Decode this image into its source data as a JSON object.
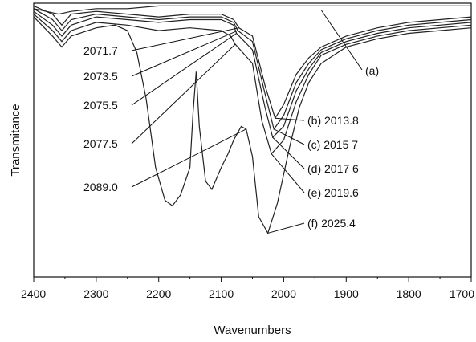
{
  "chart_data": {
    "type": "line",
    "xlabel": "Wavenumbers",
    "ylabel": "Transmitance",
    "xlim": [
      2400,
      1700
    ],
    "x_reversed": true,
    "x_ticks": [
      2400,
      2300,
      2200,
      2100,
      2000,
      1900,
      1800,
      1700
    ],
    "x_tick_labels": [
      "2400",
      "2300",
      "2200",
      "2100",
      "2000",
      "1900",
      "1800",
      "1700"
    ],
    "ylim": [
      0,
      100
    ],
    "grid": false,
    "series": [
      {
        "id": "a",
        "label": "(a)",
        "min_position": "",
        "points": [
          [
            2400,
            98
          ],
          [
            2380,
            97
          ],
          [
            2360,
            96
          ],
          [
            2340,
            97
          ],
          [
            2300,
            98
          ],
          [
            2250,
            98
          ],
          [
            2200,
            99
          ],
          [
            2150,
            99
          ],
          [
            2100,
            99
          ],
          [
            2050,
            99
          ],
          [
            2000,
            99
          ],
          [
            1900,
            99
          ],
          [
            1800,
            99
          ],
          [
            1700,
            99
          ]
        ]
      },
      {
        "id": "b",
        "label": "(b)",
        "min_position": "2013.8",
        "peak_label": "2071.7",
        "points": [
          [
            2400,
            99
          ],
          [
            2370,
            96
          ],
          [
            2355,
            92
          ],
          [
            2340,
            96
          ],
          [
            2300,
            97
          ],
          [
            2250,
            96
          ],
          [
            2200,
            95
          ],
          [
            2150,
            96
          ],
          [
            2100,
            96
          ],
          [
            2080,
            94
          ],
          [
            2071.7,
            91
          ],
          [
            2050,
            88
          ],
          [
            2030,
            70
          ],
          [
            2013.8,
            58
          ],
          [
            2000,
            63
          ],
          [
            1980,
            74
          ],
          [
            1960,
            80
          ],
          [
            1940,
            84
          ],
          [
            1900,
            88
          ],
          [
            1850,
            91
          ],
          [
            1800,
            93
          ],
          [
            1750,
            94
          ],
          [
            1700,
            95
          ]
        ]
      },
      {
        "id": "c",
        "label": "(c)",
        "min_position": "2015 7",
        "peak_label": "2073.5",
        "points": [
          [
            2400,
            98
          ],
          [
            2370,
            94
          ],
          [
            2355,
            90
          ],
          [
            2340,
            94
          ],
          [
            2300,
            96
          ],
          [
            2250,
            95
          ],
          [
            2200,
            94
          ],
          [
            2150,
            95
          ],
          [
            2100,
            95
          ],
          [
            2080,
            93
          ],
          [
            2073.5,
            90
          ],
          [
            2050,
            86
          ],
          [
            2030,
            67
          ],
          [
            2015.7,
            54
          ],
          [
            2000,
            59
          ],
          [
            1980,
            71
          ],
          [
            1960,
            78
          ],
          [
            1940,
            83
          ],
          [
            1900,
            87
          ],
          [
            1850,
            90
          ],
          [
            1800,
            92
          ],
          [
            1750,
            93
          ],
          [
            1700,
            94
          ]
        ]
      },
      {
        "id": "d",
        "label": "(d)",
        "min_position": "2017 6",
        "peak_label": "2075.5",
        "points": [
          [
            2400,
            97
          ],
          [
            2370,
            92
          ],
          [
            2355,
            88
          ],
          [
            2340,
            92
          ],
          [
            2300,
            95
          ],
          [
            2250,
            94
          ],
          [
            2200,
            93
          ],
          [
            2150,
            94
          ],
          [
            2100,
            94
          ],
          [
            2080,
            92
          ],
          [
            2075.5,
            89
          ],
          [
            2050,
            83
          ],
          [
            2030,
            62
          ],
          [
            2017.6,
            51
          ],
          [
            2000,
            55
          ],
          [
            1980,
            68
          ],
          [
            1960,
            76
          ],
          [
            1940,
            82
          ],
          [
            1900,
            86
          ],
          [
            1850,
            89
          ],
          [
            1800,
            91
          ],
          [
            1750,
            92
          ],
          [
            1700,
            93
          ]
        ]
      },
      {
        "id": "e",
        "label": "(e)",
        "min_position": "2019.6",
        "peak_label": "2077.5",
        "points": [
          [
            2400,
            96
          ],
          [
            2370,
            90
          ],
          [
            2355,
            86
          ],
          [
            2340,
            90
          ],
          [
            2300,
            93
          ],
          [
            2250,
            92
          ],
          [
            2200,
            90
          ],
          [
            2150,
            91
          ],
          [
            2100,
            90
          ],
          [
            2085,
            88
          ],
          [
            2077.5,
            85
          ],
          [
            2050,
            78
          ],
          [
            2035,
            57
          ],
          [
            2019.6,
            45
          ],
          [
            2000,
            50
          ],
          [
            1980,
            64
          ],
          [
            1960,
            74
          ],
          [
            1940,
            81
          ],
          [
            1900,
            85
          ],
          [
            1850,
            88
          ],
          [
            1800,
            90
          ],
          [
            1750,
            91
          ],
          [
            1700,
            92
          ]
        ]
      },
      {
        "id": "f",
        "label": "(f)",
        "min_position": "2025.4",
        "peak_label": "2089.0",
        "points": [
          [
            2400,
            95
          ],
          [
            2370,
            88
          ],
          [
            2355,
            84
          ],
          [
            2340,
            88
          ],
          [
            2300,
            91
          ],
          [
            2270,
            92
          ],
          [
            2250,
            90
          ],
          [
            2235,
            82
          ],
          [
            2220,
            65
          ],
          [
            2205,
            40
          ],
          [
            2190,
            28
          ],
          [
            2178,
            26
          ],
          [
            2165,
            30
          ],
          [
            2150,
            40
          ],
          [
            2145,
            60
          ],
          [
            2140,
            75
          ],
          [
            2135,
            55
          ],
          [
            2125,
            35
          ],
          [
            2115,
            32
          ],
          [
            2100,
            40
          ],
          [
            2089,
            45
          ],
          [
            2080,
            50
          ],
          [
            2068,
            55
          ],
          [
            2060,
            54
          ],
          [
            2050,
            44
          ],
          [
            2040,
            22
          ],
          [
            2025.4,
            16
          ],
          [
            2010,
            27
          ],
          [
            1990,
            48
          ],
          [
            1975,
            62
          ],
          [
            1960,
            71
          ],
          [
            1940,
            78
          ],
          [
            1900,
            84
          ],
          [
            1850,
            87
          ],
          [
            1800,
            89
          ],
          [
            1750,
            90
          ],
          [
            1700,
            91
          ]
        ]
      }
    ],
    "annotations": [
      {
        "text": "(a)",
        "target": [
          1940,
          97.5
        ],
        "label_pos": "right"
      },
      {
        "text": "(b)  2013.8",
        "target": [
          2013.8,
          58
        ],
        "label_pos": "right"
      },
      {
        "text": "(c)  2015 7",
        "target": [
          2015.7,
          54
        ],
        "label_pos": "right"
      },
      {
        "text": "(d)  2017 6",
        "target": [
          2017.6,
          51
        ],
        "label_pos": "right"
      },
      {
        "text": "(e)  2019.6",
        "target": [
          2019.6,
          45
        ],
        "label_pos": "right"
      },
      {
        "text": "(f)  2025.4",
        "target": [
          2025.4,
          16
        ],
        "label_pos": "right"
      },
      {
        "text": "2071.7",
        "target": [
          2071.7,
          91
        ],
        "label_pos": "left"
      },
      {
        "text": "2073.5",
        "target": [
          2073.5,
          90
        ],
        "label_pos": "left"
      },
      {
        "text": "2075.5",
        "target": [
          2075.5,
          89
        ],
        "label_pos": "left"
      },
      {
        "text": "2077.5",
        "target": [
          2077.5,
          85
        ],
        "label_pos": "left"
      },
      {
        "text": "2089.0",
        "target": [
          2060,
          54
        ],
        "label_pos": "left"
      }
    ]
  }
}
